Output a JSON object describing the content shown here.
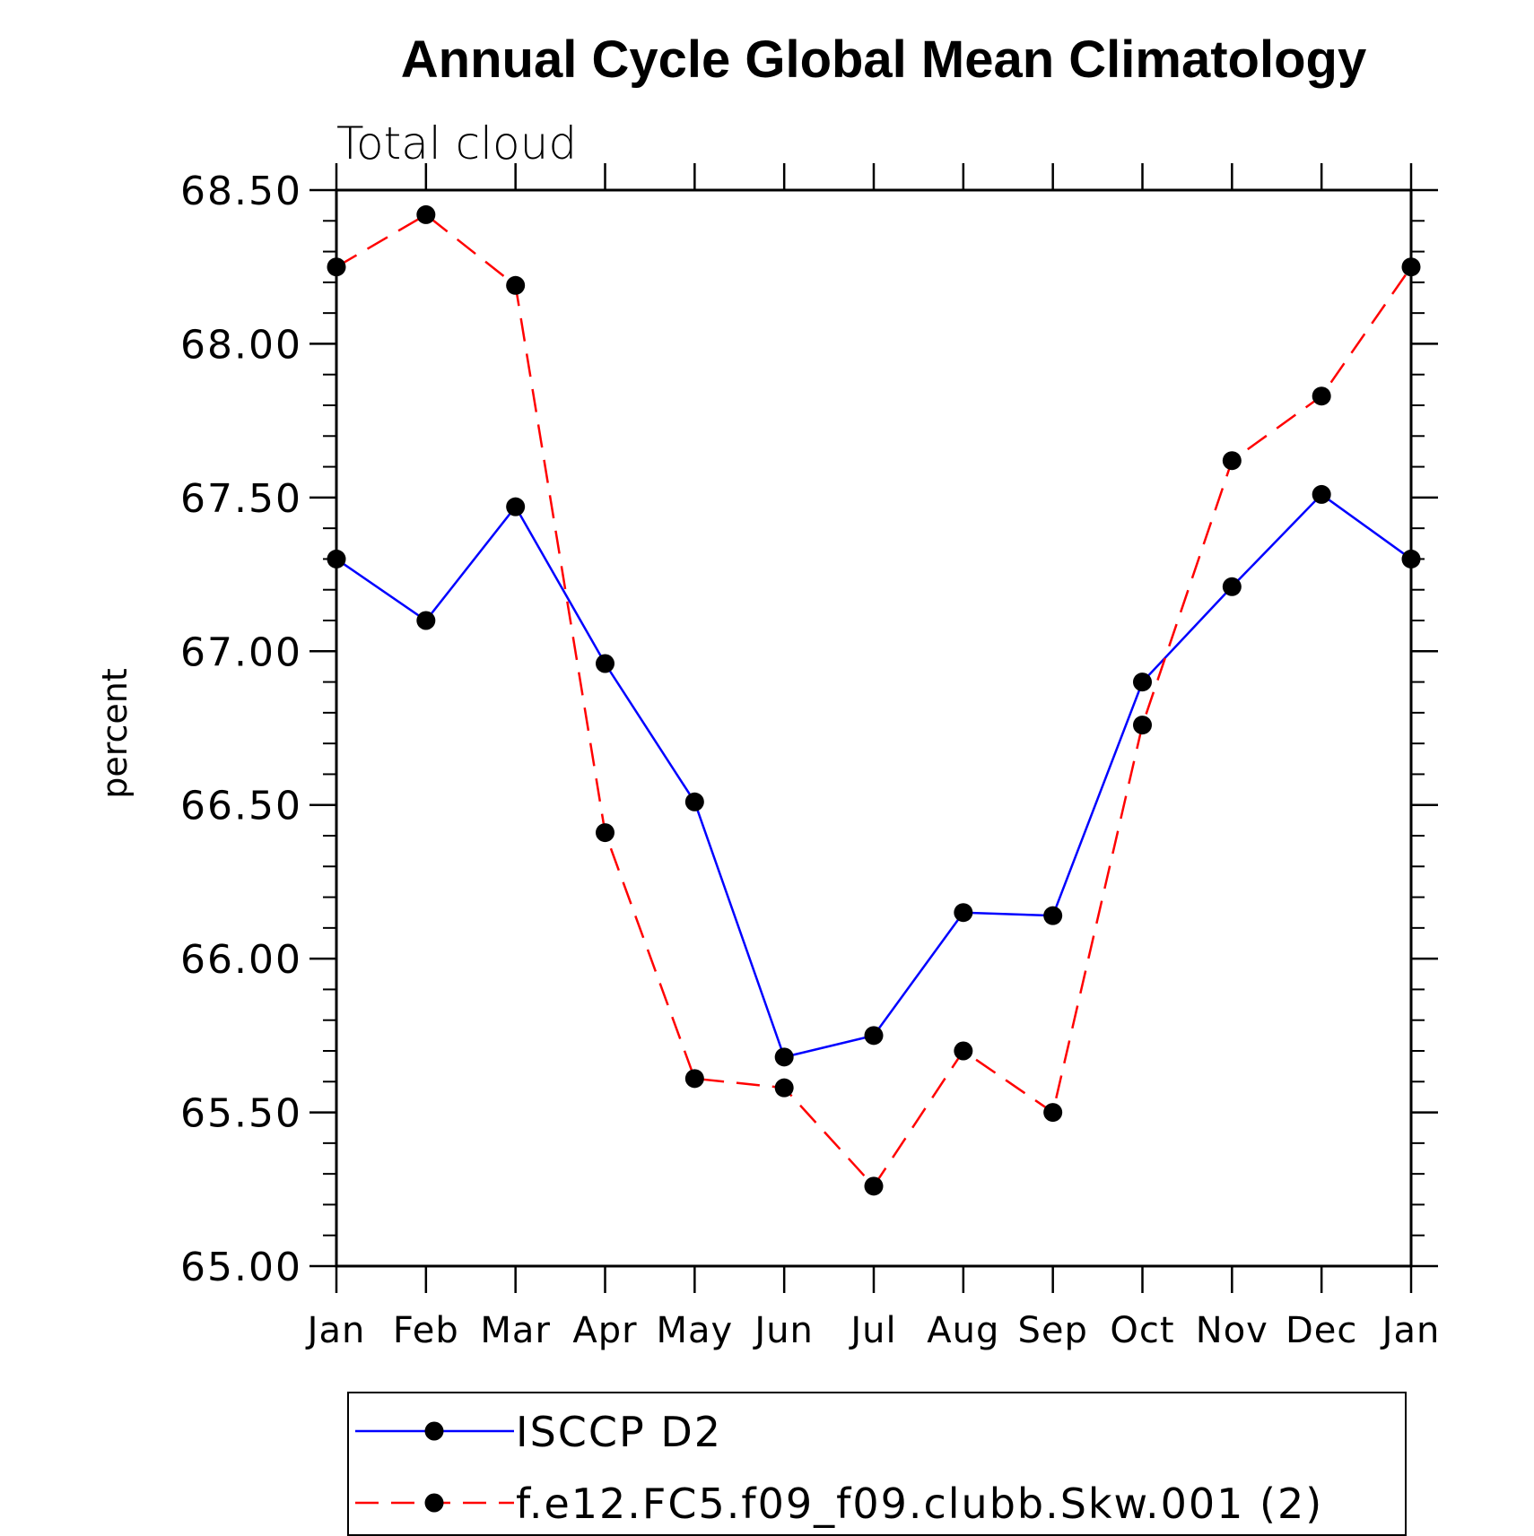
{
  "chart_data": {
    "type": "line",
    "title": "Annual Cycle Global Mean Climatology",
    "subtitle": "Total cloud",
    "ylabel": "percent",
    "xlabel": "",
    "categories": [
      "Jan",
      "Feb",
      "Mar",
      "Apr",
      "May",
      "Jun",
      "Jul",
      "Aug",
      "Sep",
      "Oct",
      "Nov",
      "Dec",
      "Jan"
    ],
    "ylim": [
      65.0,
      68.5
    ],
    "yticks": [
      "65.00",
      "65.50",
      "66.00",
      "66.50",
      "67.00",
      "67.50",
      "68.00",
      "68.50"
    ],
    "grid": false,
    "legend_position": "bottom",
    "series": [
      {
        "name": "ISCCP D2",
        "color": "#0000ff",
        "line_style": "solid",
        "marker": "filled-circle",
        "values": [
          67.3,
          67.1,
          67.47,
          66.96,
          66.51,
          65.68,
          65.75,
          66.15,
          66.14,
          66.9,
          67.21,
          67.51,
          67.3
        ]
      },
      {
        "name": "f.e12.FC5.f09_f09.clubb.Skw.001 (2)",
        "color": "#ff0000",
        "line_style": "dashed",
        "marker": "filled-circle",
        "values": [
          68.25,
          68.42,
          68.19,
          66.41,
          65.61,
          65.58,
          65.26,
          65.7,
          65.5,
          66.76,
          67.62,
          67.83,
          68.25
        ]
      }
    ]
  }
}
